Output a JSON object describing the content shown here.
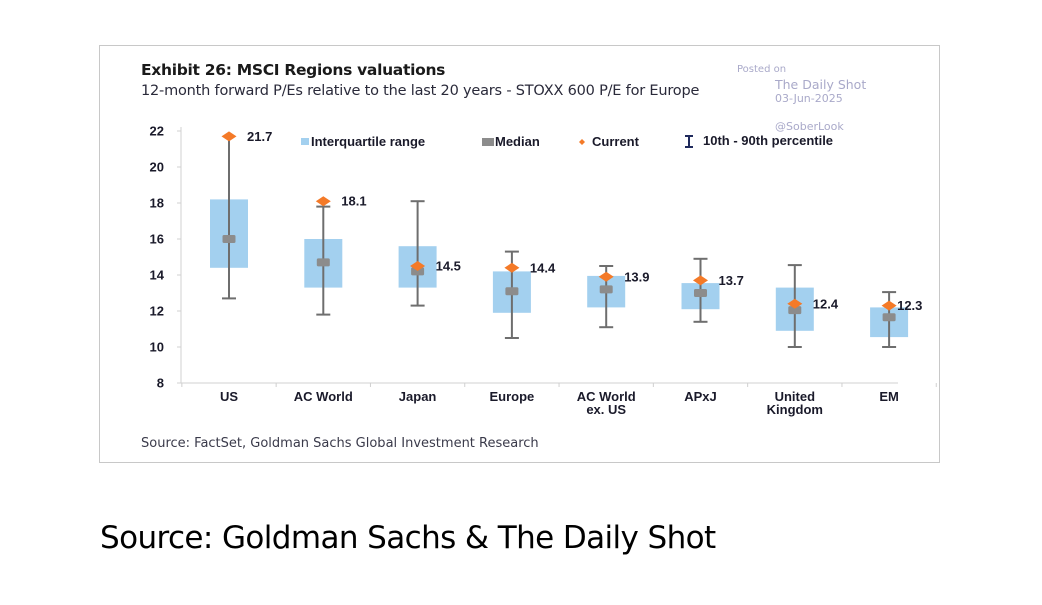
{
  "chart_data": {
    "type": "boxplot",
    "title": "Exhibit 26: MSCI Regions valuations",
    "subtitle": "12-month forward P/Es relative to the last 20 years - STOXX 600 P/E for Europe",
    "xlabel": "",
    "ylabel": "",
    "ylim": [
      8,
      22
    ],
    "yticks": [
      "8",
      "10",
      "12",
      "14",
      "16",
      "18",
      "20",
      "22"
    ],
    "grid": false,
    "legend_position": "top",
    "legend": [
      {
        "key": "iqr",
        "label": "Interquartile range"
      },
      {
        "key": "median",
        "label": "Median"
      },
      {
        "key": "current",
        "label": "Current"
      },
      {
        "key": "whisker",
        "label": "10th - 90th percentile"
      }
    ],
    "categories": [
      {
        "label": [
          "US"
        ],
        "p10": 12.7,
        "q1": 14.4,
        "median": 16.0,
        "q3": 18.2,
        "p90": 21.7,
        "current": 21.7,
        "current_label": "21.7"
      },
      {
        "label": [
          "AC World"
        ],
        "p10": 11.8,
        "q1": 13.3,
        "median": 14.7,
        "q3": 16.0,
        "p90": 17.8,
        "current": 18.1,
        "current_label": "18.1"
      },
      {
        "label": [
          "Japan"
        ],
        "p10": 12.3,
        "q1": 13.3,
        "median": 14.2,
        "q3": 15.6,
        "p90": 18.1,
        "current": 14.5,
        "current_label": "14.5"
      },
      {
        "label": [
          "Europe"
        ],
        "p10": 10.5,
        "q1": 11.9,
        "median": 13.1,
        "q3": 14.2,
        "p90": 15.3,
        "current": 14.4,
        "current_label": "14.4"
      },
      {
        "label": [
          "AC World",
          "ex. US"
        ],
        "p10": 11.1,
        "q1": 12.2,
        "median": 13.2,
        "q3": 13.95,
        "p90": 14.5,
        "current": 13.9,
        "current_label": "13.9"
      },
      {
        "label": [
          "APxJ"
        ],
        "p10": 11.4,
        "q1": 12.1,
        "median": 13.0,
        "q3": 13.55,
        "p90": 14.9,
        "current": 13.7,
        "current_label": "13.7"
      },
      {
        "label": [
          "United",
          "Kingdom"
        ],
        "p10": 10.0,
        "q1": 10.9,
        "median": 12.05,
        "q3": 13.3,
        "p90": 14.55,
        "current": 12.4,
        "current_label": "12.4"
      },
      {
        "label": [
          "EM"
        ],
        "p10": 10.0,
        "q1": 10.55,
        "median": 11.65,
        "q3": 12.2,
        "p90": 13.05,
        "current": 12.3,
        "current_label": "12.3"
      }
    ],
    "colors": {
      "iqr": "#a3d0ef",
      "median": "#8c8c8c",
      "current": "#f47a28",
      "whisker": "#6e6e6e",
      "legend_whisker": "#1f2a5c"
    }
  },
  "watermark": {
    "posted_on": "Posted on",
    "site": "The Daily Shot",
    "date": "03-Jun-2025",
    "handle": "@SoberLook"
  },
  "inner_source": "Source: FactSet, Goldman Sachs Global Investment Research",
  "outer_source": "Source: Goldman Sachs & The Daily Shot"
}
